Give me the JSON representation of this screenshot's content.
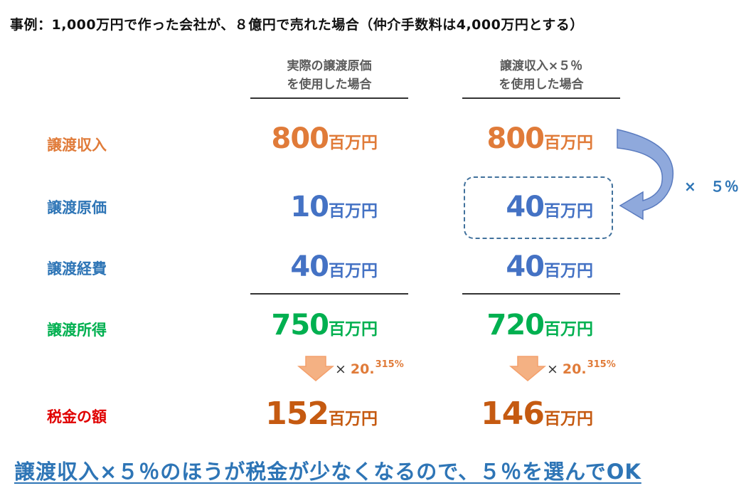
{
  "title": "事例：1,000万円で作った会社が、８億円で売れた場合（仲介手数料は4,000万円とする）",
  "columns": {
    "actual": {
      "line1": "実際の譲渡原価",
      "line2": "を使用した場合"
    },
    "estimated": {
      "line1": "譲渡収入×５％",
      "line2": "を使用した場合"
    }
  },
  "unit": "百万円",
  "rows": {
    "revenue": {
      "label": "譲渡収入",
      "actual": "800",
      "estimated": "800"
    },
    "cost": {
      "label": "譲渡原価",
      "actual": "10",
      "estimated": "40"
    },
    "expenses": {
      "label": "譲渡経費",
      "actual": "40",
      "estimated": "40"
    },
    "income": {
      "label": "譲渡所得",
      "actual": "750",
      "estimated": "720"
    },
    "tax": {
      "label": "税金の額",
      "actual": "152",
      "estimated": "146"
    }
  },
  "rate": {
    "times": "×",
    "base": "20.",
    "fraction": "315%"
  },
  "multiplier": "×　５％",
  "conclusion": "譲渡収入×５％のほうが税金が少なくなるので、５％を選んでOK",
  "colors": {
    "revenue": "#e07b39",
    "blue_label": "#2e75b6",
    "blue_value": "#4472c4",
    "green": "#00b050",
    "tax_label": "#e00000",
    "tax_value": "#c55a11",
    "arrow_fill": "#f4b183"
  },
  "icons": [
    "curved-arrow-icon",
    "down-arrow-icon"
  ]
}
